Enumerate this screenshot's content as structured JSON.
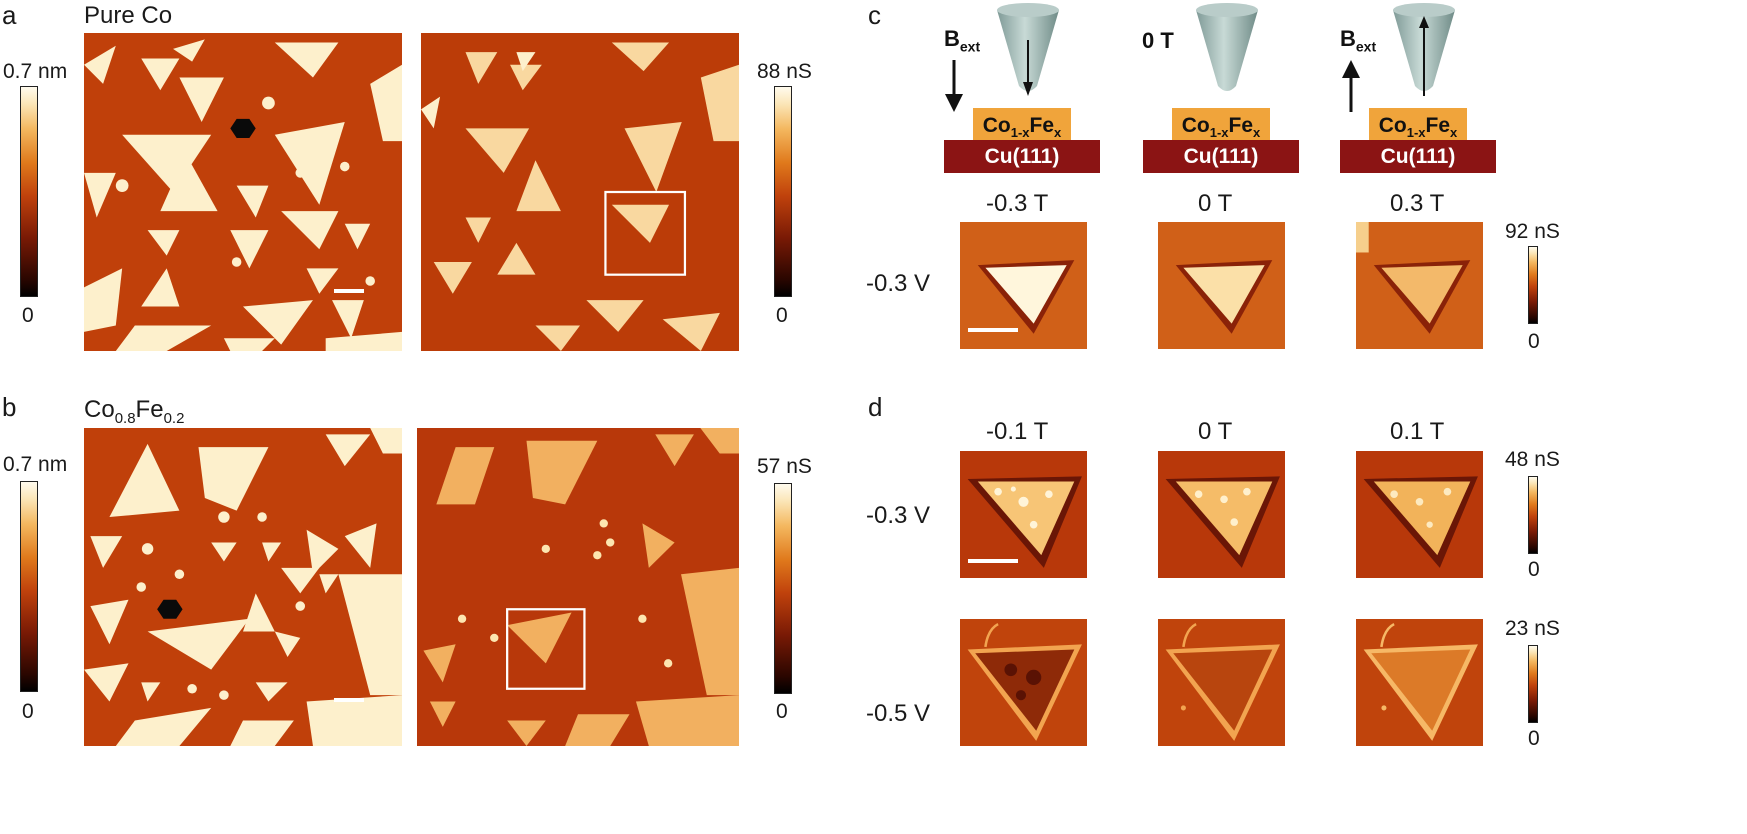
{
  "panels": {
    "a": {
      "label": "a",
      "title": "Pure Co",
      "topo_cbar": {
        "max": "0.7 nm",
        "min": "0"
      },
      "cond_cbar": {
        "max": "88 nS",
        "min": "0"
      }
    },
    "b": {
      "label": "b",
      "title_main": "Co",
      "title_sub1": "0.8",
      "title_mid": "Fe",
      "title_sub2": "0.2",
      "topo_cbar": {
        "max": "0.7 nm",
        "min": "0"
      },
      "cond_cbar": {
        "max": "57 nS",
        "min": "0"
      }
    },
    "c": {
      "label": "c",
      "schematics": [
        {
          "field_main": "B",
          "field_sub": "ext",
          "layer_main": "Co",
          "layer_sub1": "1-x",
          "layer_mid": "Fe",
          "layer_sub2": "x",
          "substrate": "Cu(111)"
        },
        {
          "field_main": "0 T",
          "layer_main": "Co",
          "layer_sub1": "1-x",
          "layer_mid": "Fe",
          "layer_sub2": "x",
          "substrate": "Cu(111)"
        },
        {
          "field_main": "B",
          "field_sub": "ext",
          "layer_main": "Co",
          "layer_sub1": "1-x",
          "layer_mid": "Fe",
          "layer_sub2": "x",
          "substrate": "Cu(111)"
        }
      ],
      "columns": [
        "-0.3 T",
        "0 T",
        "0.3 T"
      ],
      "rows": [
        "-0.3 V"
      ],
      "cbar": {
        "max": "92 nS",
        "min": "0"
      }
    },
    "d": {
      "label": "d",
      "columns": [
        "-0.1 T",
        "0 T",
        "0.1 T"
      ],
      "rows": [
        "-0.3 V",
        "-0.5 V"
      ],
      "cbars": [
        {
          "max": "48 nS",
          "min": "0"
        },
        {
          "max": "23 nS",
          "min": "0"
        }
      ]
    }
  },
  "colors": {
    "terrace": "#c0400a",
    "island": "#fdf0cc",
    "substrate_layer": "#8b1414",
    "alloy_layer": "#f0a43b",
    "tip": "#a9c0bc"
  }
}
